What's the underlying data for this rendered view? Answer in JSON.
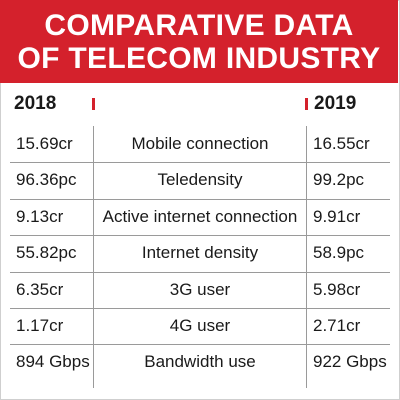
{
  "chart_data": {
    "type": "table",
    "title": "COMPARATIVE DATA OF TELECOM INDUSTRY",
    "title_lines": [
      "COMPARATIVE DATA",
      "OF TELECOM INDUSTRY"
    ],
    "columns": [
      "2018",
      "",
      "2019"
    ],
    "rows": [
      {
        "y2018": "15.69cr",
        "metric": "Mobile connection",
        "y2019": "16.55cr"
      },
      {
        "y2018": "96.36pc",
        "metric": "Teledensity",
        "y2019": "99.2pc"
      },
      {
        "y2018": "9.13cr",
        "metric": "Active internet connection",
        "y2019": "9.91cr"
      },
      {
        "y2018": "55.82pc",
        "metric": "Internet density",
        "y2019": "58.9pc"
      },
      {
        "y2018": "6.35cr",
        "metric": "3G user",
        "y2019": "5.98cr"
      },
      {
        "y2018": "1.17cr",
        "metric": "4G user",
        "y2019": "2.71cr"
      },
      {
        "y2018": "894 Gbps",
        "metric": "Bandwidth use",
        "y2019": "922 Gbps"
      }
    ],
    "colors": {
      "banner": "#d4212c",
      "text": "#1a1a1a",
      "rule": "#9a9a9a"
    }
  }
}
